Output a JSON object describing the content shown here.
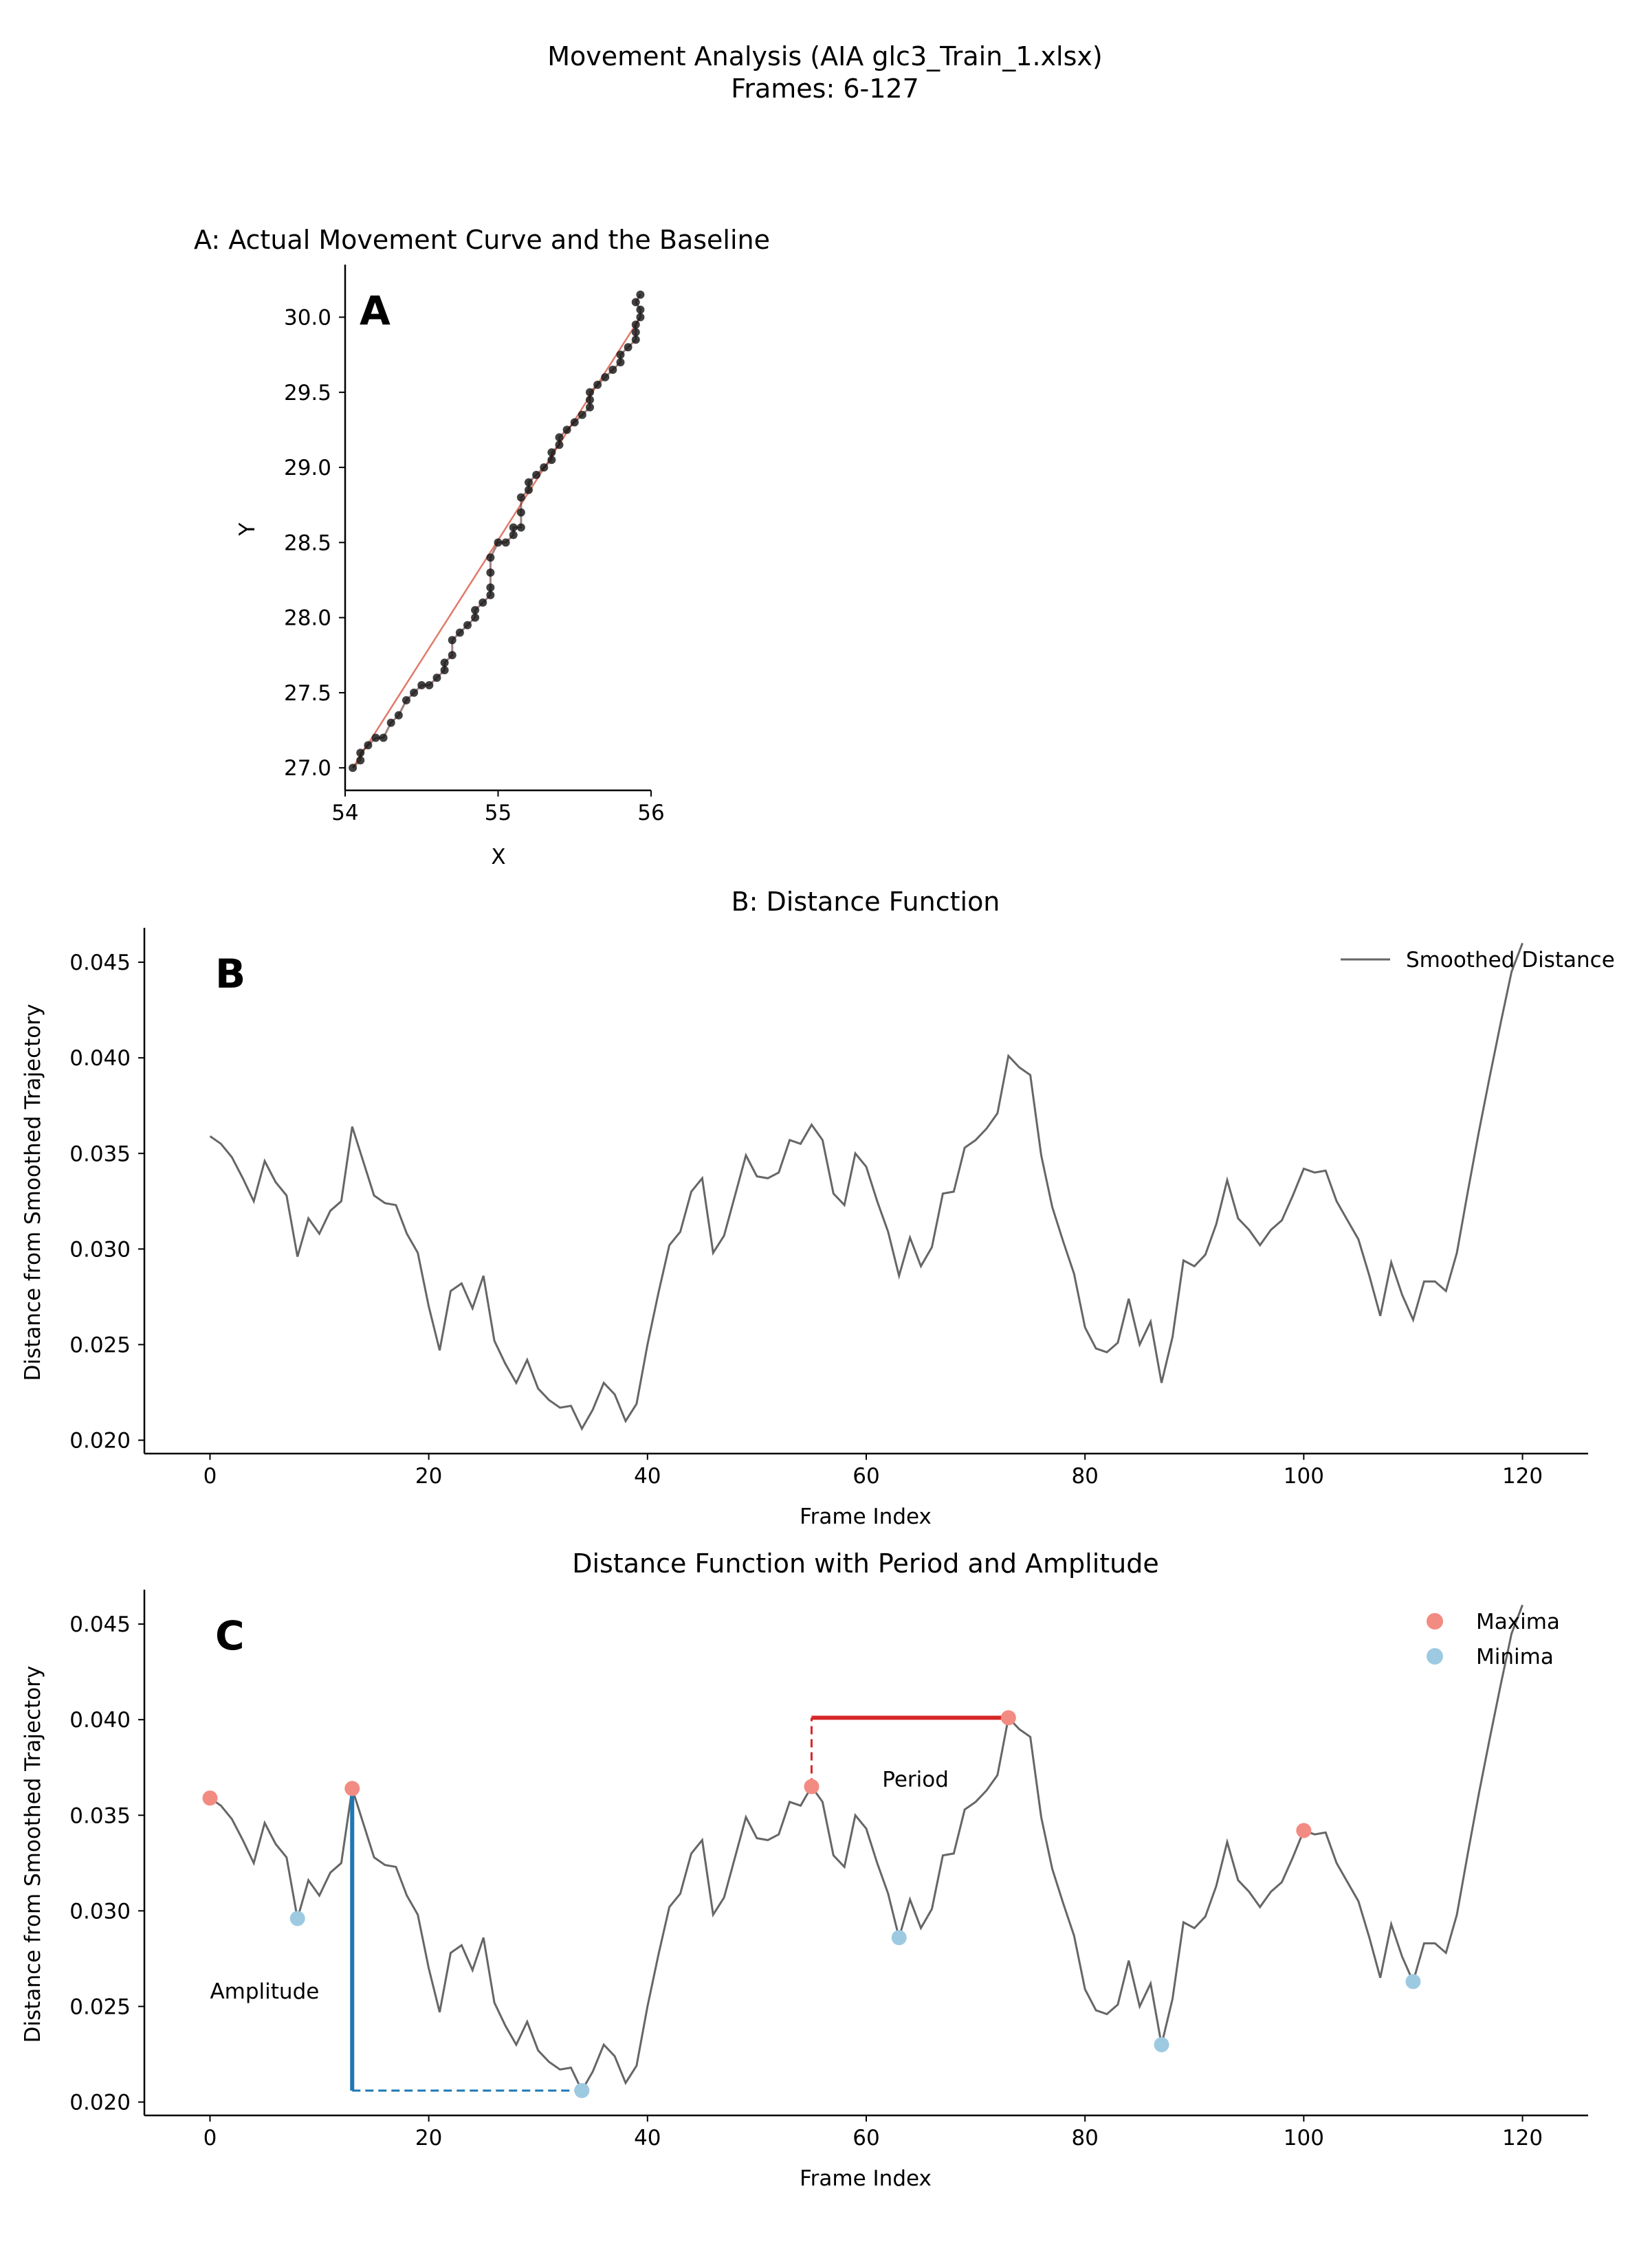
{
  "figure": {
    "title_line1": "Movement Analysis (AIA glc3_Train_1.xlsx)",
    "title_line2": "Frames: 6-127"
  },
  "chart_data": [
    {
      "id": "A",
      "type": "scatter",
      "panel_letter": "A",
      "title": "A: Actual Movement Curve and the Baseline",
      "xlabel": "X",
      "ylabel": "Y",
      "xlim": [
        54.0,
        56.0
      ],
      "ylim": [
        26.85,
        30.35
      ],
      "xticks": [
        54,
        55,
        56
      ],
      "yticks": [
        27.0,
        27.5,
        28.0,
        28.5,
        29.0,
        29.5,
        30.0
      ],
      "xtick_labels": [
        "54",
        "55",
        "56"
      ],
      "ytick_labels": [
        "27.0",
        "27.5",
        "28.0",
        "28.5",
        "29.0",
        "29.5",
        "30.0"
      ],
      "baseline": {
        "x": [
          54.05,
          55.93
        ],
        "y": [
          27.0,
          30.0
        ],
        "color": "#e07a6a"
      },
      "points_color": "#111111",
      "points": [
        [
          54.05,
          27.0
        ],
        [
          54.1,
          27.05
        ],
        [
          54.1,
          27.1
        ],
        [
          54.15,
          27.15
        ],
        [
          54.2,
          27.2
        ],
        [
          54.25,
          27.2
        ],
        [
          54.3,
          27.3
        ],
        [
          54.35,
          27.35
        ],
        [
          54.4,
          27.45
        ],
        [
          54.45,
          27.5
        ],
        [
          54.5,
          27.55
        ],
        [
          54.55,
          27.55
        ],
        [
          54.6,
          27.6
        ],
        [
          54.65,
          27.65
        ],
        [
          54.65,
          27.7
        ],
        [
          54.7,
          27.75
        ],
        [
          54.7,
          27.85
        ],
        [
          54.75,
          27.9
        ],
        [
          54.8,
          27.95
        ],
        [
          54.85,
          28.0
        ],
        [
          54.85,
          28.05
        ],
        [
          54.9,
          28.1
        ],
        [
          54.95,
          28.15
        ],
        [
          54.95,
          28.2
        ],
        [
          54.95,
          28.3
        ],
        [
          54.95,
          28.4
        ],
        [
          55.0,
          28.5
        ],
        [
          55.05,
          28.5
        ],
        [
          55.1,
          28.55
        ],
        [
          55.1,
          28.6
        ],
        [
          55.15,
          28.6
        ],
        [
          55.15,
          28.7
        ],
        [
          55.15,
          28.8
        ],
        [
          55.2,
          28.85
        ],
        [
          55.2,
          28.9
        ],
        [
          55.25,
          28.95
        ],
        [
          55.3,
          29.0
        ],
        [
          55.35,
          29.05
        ],
        [
          55.35,
          29.1
        ],
        [
          55.4,
          29.15
        ],
        [
          55.4,
          29.2
        ],
        [
          55.45,
          29.25
        ],
        [
          55.5,
          29.3
        ],
        [
          55.55,
          29.35
        ],
        [
          55.6,
          29.4
        ],
        [
          55.6,
          29.45
        ],
        [
          55.6,
          29.5
        ],
        [
          55.65,
          29.55
        ],
        [
          55.7,
          29.6
        ],
        [
          55.75,
          29.65
        ],
        [
          55.8,
          29.7
        ],
        [
          55.8,
          29.75
        ],
        [
          55.85,
          29.8
        ],
        [
          55.9,
          29.85
        ],
        [
          55.9,
          29.9
        ],
        [
          55.9,
          29.95
        ],
        [
          55.93,
          30.0
        ],
        [
          55.93,
          30.05
        ],
        [
          55.9,
          30.1
        ],
        [
          55.93,
          30.15
        ]
      ]
    },
    {
      "id": "B",
      "type": "line",
      "panel_letter": "B",
      "title": "B: Distance Function",
      "xlabel": "Frame Index",
      "ylabel": "Distance from Smoothed Trajectory",
      "xlim": [
        -6,
        126
      ],
      "ylim": [
        0.0193,
        0.0468
      ],
      "xticks": [
        0,
        20,
        40,
        60,
        80,
        100,
        120
      ],
      "yticks": [
        0.02,
        0.025,
        0.03,
        0.035,
        0.04,
        0.045
      ],
      "xtick_labels": [
        "0",
        "20",
        "40",
        "60",
        "80",
        "100",
        "120"
      ],
      "ytick_labels": [
        "0.020",
        "0.025",
        "0.030",
        "0.035",
        "0.040",
        "0.045"
      ],
      "legend": {
        "position": "top-right",
        "entries": [
          {
            "label": "Smoothed Distance",
            "color": "#666666"
          }
        ]
      },
      "series": [
        {
          "name": "Smoothed Distance",
          "color": "#666666",
          "x": [
            0,
            1,
            2,
            3,
            4,
            5,
            6,
            7,
            8,
            9,
            10,
            11,
            12,
            13,
            14,
            15,
            16,
            17,
            18,
            19,
            20,
            21,
            22,
            23,
            24,
            25,
            26,
            27,
            28,
            29,
            30,
            31,
            32,
            33,
            34,
            35,
            36,
            37,
            38,
            39,
            40,
            41,
            42,
            43,
            44,
            45,
            46,
            47,
            48,
            49,
            50,
            51,
            52,
            53,
            54,
            55,
            56,
            57,
            58,
            59,
            60,
            61,
            62,
            63,
            64,
            65,
            66,
            67,
            68,
            69,
            70,
            71,
            72,
            73,
            74,
            75,
            76,
            77,
            78,
            79,
            80,
            81,
            82,
            83,
            84,
            85,
            86,
            87,
            88,
            89,
            90,
            91,
            92,
            93,
            94,
            95,
            96,
            97,
            98,
            99,
            100,
            101,
            102,
            103,
            104,
            105,
            106,
            107,
            108,
            109,
            110,
            111,
            112,
            113,
            114,
            115,
            116,
            117,
            118,
            119,
            120
          ],
          "y": [
            0.0359,
            0.0355,
            0.0348,
            0.0337,
            0.0325,
            0.0346,
            0.0335,
            0.0328,
            0.0296,
            0.0316,
            0.0308,
            0.032,
            0.0325,
            0.0364,
            0.0346,
            0.0328,
            0.0324,
            0.0323,
            0.0308,
            0.0298,
            0.027,
            0.0247,
            0.0278,
            0.0282,
            0.0269,
            0.0286,
            0.0252,
            0.024,
            0.023,
            0.0242,
            0.0227,
            0.0221,
            0.0217,
            0.0218,
            0.0206,
            0.0216,
            0.023,
            0.0224,
            0.021,
            0.0219,
            0.025,
            0.0277,
            0.0302,
            0.0309,
            0.033,
            0.0337,
            0.0298,
            0.0307,
            0.0328,
            0.0349,
            0.0338,
            0.0337,
            0.034,
            0.0357,
            0.0355,
            0.0365,
            0.0357,
            0.0329,
            0.0323,
            0.035,
            0.0343,
            0.0325,
            0.0309,
            0.0286,
            0.0306,
            0.0291,
            0.0301,
            0.0329,
            0.033,
            0.0353,
            0.0357,
            0.0363,
            0.0371,
            0.0401,
            0.0395,
            0.0391,
            0.0349,
            0.0322,
            0.0304,
            0.0287,
            0.0259,
            0.0248,
            0.0246,
            0.0251,
            0.0274,
            0.025,
            0.0262,
            0.023,
            0.0254,
            0.0294,
            0.0291,
            0.0297,
            0.0313,
            0.0336,
            0.0316,
            0.031,
            0.0302,
            0.031,
            0.0315,
            0.0328,
            0.0342,
            0.034,
            0.0341,
            0.0325,
            0.0315,
            0.0305,
            0.0286,
            0.0265,
            0.0293,
            0.0276,
            0.0263,
            0.0283,
            0.0283,
            0.0278,
            0.0298,
            0.033,
            0.0361,
            0.039,
            0.0418,
            0.0445,
            0.046
          ]
        }
      ]
    },
    {
      "id": "C",
      "type": "line",
      "panel_letter": "C",
      "title": "Distance Function with Period and Amplitude",
      "xlabel": "Frame Index",
      "ylabel": "Distance from Smoothed Trajectory",
      "xlim": [
        -6,
        126
      ],
      "ylim": [
        0.0193,
        0.0468
      ],
      "xticks": [
        0,
        20,
        40,
        60,
        80,
        100,
        120
      ],
      "yticks": [
        0.02,
        0.025,
        0.03,
        0.035,
        0.04,
        0.045
      ],
      "xtick_labels": [
        "0",
        "20",
        "40",
        "60",
        "80",
        "100",
        "120"
      ],
      "ytick_labels": [
        "0.020",
        "0.025",
        "0.030",
        "0.035",
        "0.040",
        "0.045"
      ],
      "legend": {
        "position": "top-right",
        "entries": [
          {
            "label": "Maxima",
            "color": "#f28b82"
          },
          {
            "label": "Minima",
            "color": "#9ecae1"
          }
        ]
      },
      "maxima": {
        "name": "Maxima",
        "color": "#f28b82",
        "x": [
          0,
          13,
          55,
          73,
          100
        ],
        "y": [
          0.0359,
          0.0364,
          0.0365,
          0.0401,
          0.0342
        ]
      },
      "minima": {
        "name": "Minima",
        "color": "#9ecae1",
        "x": [
          8,
          34,
          63,
          87,
          110
        ],
        "y": [
          0.0296,
          0.0206,
          0.0286,
          0.023,
          0.0263
        ]
      },
      "annotations": {
        "amplitude": {
          "label": "Amplitude",
          "color": "#1f77b4",
          "x": 13,
          "y_top": 0.0364,
          "y_bottom": 0.0206,
          "x_end": 34,
          "label_x": 0,
          "label_y": 0.0258
        },
        "period": {
          "label": "Period",
          "color": "#d62728",
          "x_start": 55,
          "x_end": 73,
          "y": 0.0401,
          "y_start": 0.0365,
          "label_x": 64.5,
          "label_y": 0.0369
        }
      }
    }
  ]
}
